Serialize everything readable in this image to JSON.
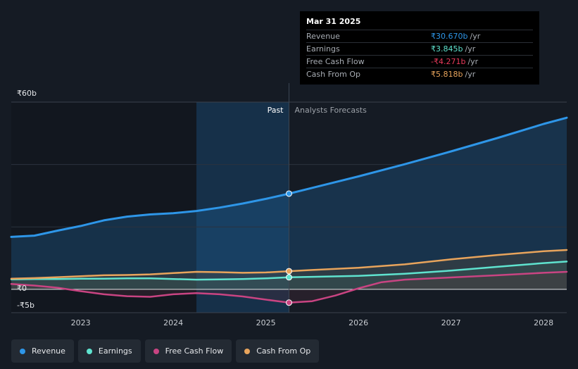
{
  "tooltip": {
    "date": "Mar 31 2025",
    "rows": [
      {
        "name": "Revenue",
        "value": "₹30.670b",
        "unit": "/yr",
        "color": "#2e96e8"
      },
      {
        "name": "Earnings",
        "value": "₹3.845b",
        "unit": "/yr",
        "color": "#5fe3cf"
      },
      {
        "name": "Free Cash Flow",
        "value": "-₹4.271b",
        "unit": "/yr",
        "color": "#ea3a5b"
      },
      {
        "name": "Cash From Op",
        "value": "₹5.818b",
        "unit": "/yr",
        "color": "#e8a45c"
      }
    ]
  },
  "legend": [
    {
      "label": "Revenue",
      "color": "#2e96e8"
    },
    {
      "label": "Earnings",
      "color": "#5fe3cf"
    },
    {
      "label": "Free Cash Flow",
      "color": "#c94482"
    },
    {
      "label": "Cash From Op",
      "color": "#e8a45c"
    }
  ],
  "chart_data": {
    "type": "line",
    "title": "",
    "past_label": "Past",
    "forecast_label": "Analysts Forecasts",
    "y_tick_labels": [
      "₹60b",
      "₹0",
      "-₹5b"
    ],
    "x_tick_labels": [
      "2023",
      "2024",
      "2025",
      "2026",
      "2027",
      "2028"
    ],
    "x_ticks": [
      2023,
      2024,
      2025,
      2026,
      2027,
      2028
    ],
    "xlim": [
      2022.25,
      2028.25
    ],
    "ylim": [
      -5,
      60
    ],
    "grid_values": [
      40,
      20
    ],
    "past_region_start": 2024.25,
    "divider_x": 2025.25,
    "series": [
      {
        "name": "Revenue",
        "color": "#2e96e8",
        "area_color": "#1d5b8f",
        "points": [
          [
            2022.25,
            16.8
          ],
          [
            2022.5,
            17.2
          ],
          [
            2022.75,
            18.8
          ],
          [
            2023.0,
            20.3
          ],
          [
            2023.25,
            22.1
          ],
          [
            2023.5,
            23.3
          ],
          [
            2023.75,
            24.0
          ],
          [
            2024.0,
            24.4
          ],
          [
            2024.25,
            25.1
          ],
          [
            2024.5,
            26.2
          ],
          [
            2024.75,
            27.5
          ],
          [
            2025.0,
            29.0
          ],
          [
            2025.25,
            30.67
          ],
          [
            2025.5,
            32.5
          ],
          [
            2026.0,
            36.2
          ],
          [
            2026.5,
            40.1
          ],
          [
            2027.0,
            44.2
          ],
          [
            2027.5,
            48.5
          ],
          [
            2028.0,
            53.0
          ],
          [
            2028.25,
            55.0
          ]
        ]
      },
      {
        "name": "Earnings",
        "color": "#5fe3cf",
        "area_color": "#2a6a68",
        "points": [
          [
            2022.25,
            3.2
          ],
          [
            2022.5,
            3.3
          ],
          [
            2022.75,
            3.3
          ],
          [
            2023.0,
            3.4
          ],
          [
            2023.25,
            3.4
          ],
          [
            2023.5,
            3.5
          ],
          [
            2023.75,
            3.5
          ],
          [
            2024.0,
            3.3
          ],
          [
            2024.25,
            3.1
          ],
          [
            2024.5,
            3.2
          ],
          [
            2024.75,
            3.3
          ],
          [
            2025.0,
            3.5
          ],
          [
            2025.25,
            3.845
          ],
          [
            2025.5,
            4.0
          ],
          [
            2026.0,
            4.3
          ],
          [
            2026.5,
            5.0
          ],
          [
            2027.0,
            6.0
          ],
          [
            2027.5,
            7.2
          ],
          [
            2028.0,
            8.4
          ],
          [
            2028.25,
            8.9
          ]
        ]
      },
      {
        "name": "Free Cash Flow",
        "color": "#c94482",
        "area_color": "#4a2a3a",
        "points": [
          [
            2022.25,
            1.7
          ],
          [
            2022.5,
            1.2
          ],
          [
            2022.75,
            0.5
          ],
          [
            2023.0,
            -0.6
          ],
          [
            2023.25,
            -1.6
          ],
          [
            2023.5,
            -2.2
          ],
          [
            2023.75,
            -2.4
          ],
          [
            2024.0,
            -1.6
          ],
          [
            2024.25,
            -1.2
          ],
          [
            2024.5,
            -1.6
          ],
          [
            2024.75,
            -2.3
          ],
          [
            2025.0,
            -3.3
          ],
          [
            2025.25,
            -4.271
          ],
          [
            2025.5,
            -3.8
          ],
          [
            2025.75,
            -2.0
          ],
          [
            2026.0,
            0.3
          ],
          [
            2026.25,
            2.3
          ],
          [
            2026.5,
            3.1
          ],
          [
            2027.0,
            3.8
          ],
          [
            2027.5,
            4.5
          ],
          [
            2028.0,
            5.3
          ],
          [
            2028.25,
            5.6
          ]
        ]
      },
      {
        "name": "Cash From Op",
        "color": "#e8a45c",
        "area_color": "#5a4a3a",
        "points": [
          [
            2022.25,
            3.4
          ],
          [
            2022.5,
            3.6
          ],
          [
            2022.75,
            3.9
          ],
          [
            2023.0,
            4.2
          ],
          [
            2023.25,
            4.5
          ],
          [
            2023.5,
            4.6
          ],
          [
            2023.75,
            4.8
          ],
          [
            2024.0,
            5.2
          ],
          [
            2024.25,
            5.6
          ],
          [
            2024.5,
            5.5
          ],
          [
            2024.75,
            5.3
          ],
          [
            2025.0,
            5.4
          ],
          [
            2025.25,
            5.818
          ],
          [
            2025.5,
            6.2
          ],
          [
            2026.0,
            6.9
          ],
          [
            2026.5,
            8.0
          ],
          [
            2027.0,
            9.6
          ],
          [
            2027.5,
            11.0
          ],
          [
            2028.0,
            12.2
          ],
          [
            2028.25,
            12.6
          ]
        ]
      }
    ],
    "highlight": {
      "x": 2025.25
    }
  }
}
